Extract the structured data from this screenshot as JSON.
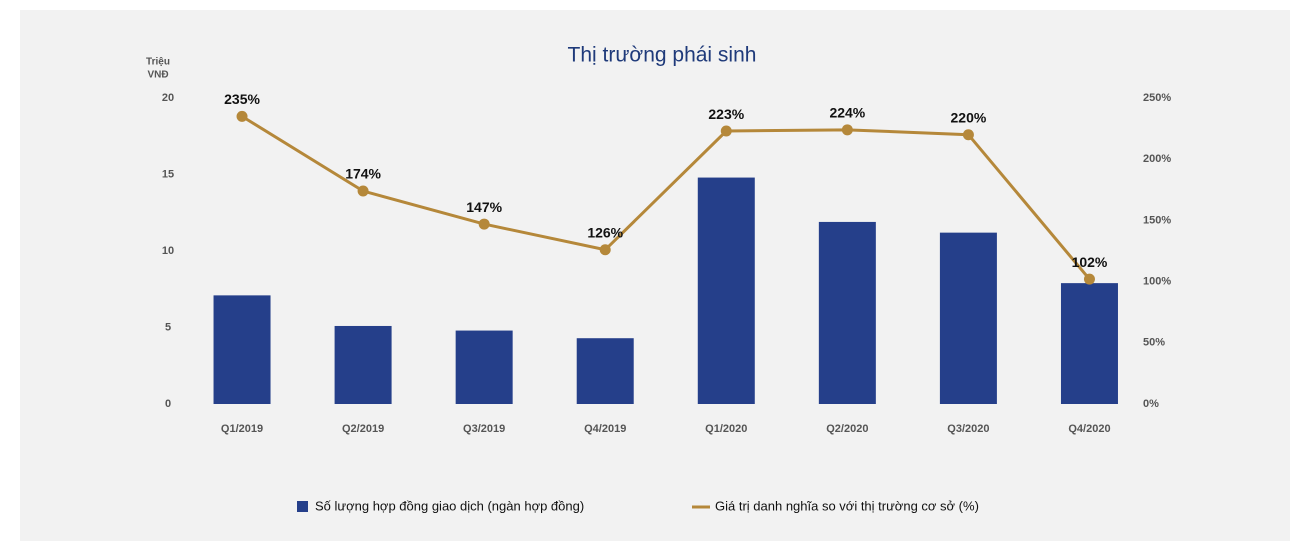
{
  "chart_data": {
    "type": "bar_line",
    "title": "Thị trường phái sinh",
    "y_label": [
      "Triệu",
      "VNĐ"
    ],
    "categories": [
      "Q1/2019",
      "Q2/2019",
      "Q3/2019",
      "Q4/2019",
      "Q1/2020",
      "Q2/2020",
      "Q3/2020",
      "Q4/2020"
    ],
    "series": [
      {
        "name": "Số lượng hợp đồng giao dịch (ngàn hợp đồng)",
        "type": "bar",
        "color": "#253f8a",
        "values": [
          7.1,
          5.1,
          4.8,
          4.3,
          14.8,
          11.9,
          11.2,
          7.9
        ]
      },
      {
        "name": "Giá trị danh nghĩa so với thị trường cơ sở (%)",
        "type": "line",
        "axis": "y2",
        "color": "#b5883a",
        "values": [
          235,
          174,
          147,
          126,
          223,
          224,
          220,
          102
        ],
        "value_labels": [
          "235%",
          "174%",
          "147%",
          "126%",
          "223%",
          "224%",
          "220%",
          "102%"
        ]
      }
    ],
    "ylim": [
      0,
      20
    ],
    "yticks": [
      0,
      5,
      10,
      15,
      20
    ],
    "y2lim": [
      0,
      250
    ],
    "y2ticks": [
      {
        "value": 0,
        "label": "0%"
      },
      {
        "value": 50,
        "label": "50%"
      },
      {
        "value": 100,
        "label": "100%"
      },
      {
        "value": 150,
        "label": "150%"
      },
      {
        "value": 200,
        "label": "200%"
      },
      {
        "value": 250,
        "label": "250%"
      }
    ],
    "grid": false,
    "legend": "bottom"
  }
}
